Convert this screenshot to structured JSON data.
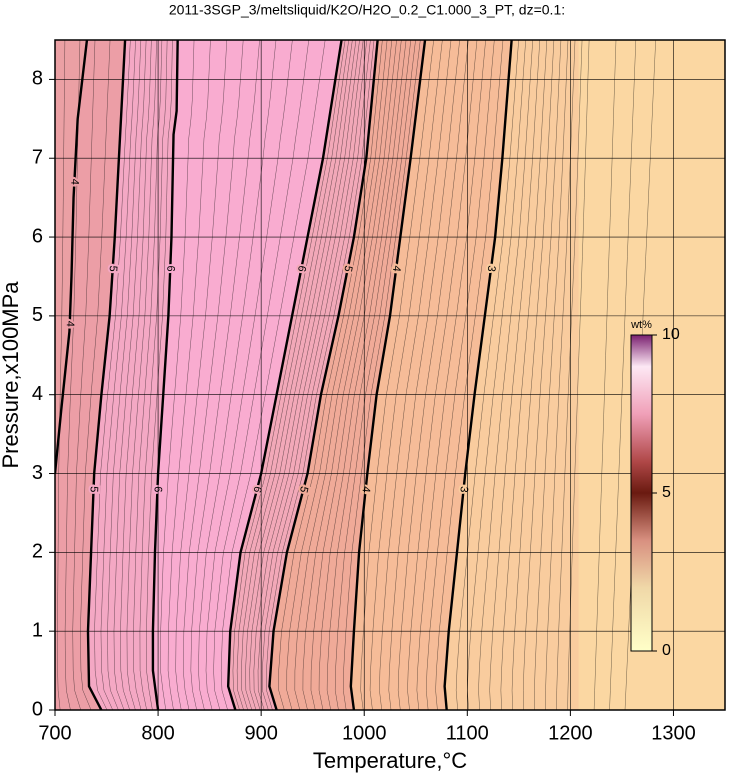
{
  "chart_data": {
    "type": "contour",
    "title": "2011-3SGP_3/meltsliquid/K2O/H2O_0.2_C1.000_3_PT, dz=0.1:",
    "x_label": "Temperature,°C",
    "y_label": "Pressure,x100MPa",
    "xlim": [
      700,
      1350
    ],
    "ylim": [
      0,
      8.5
    ],
    "xticks": [
      700,
      800,
      900,
      1000,
      1100,
      1200,
      1300
    ],
    "yticks": [
      0,
      1,
      2,
      3,
      4,
      5,
      6,
      7,
      8
    ],
    "grid": true,
    "contours": [
      {
        "level": 4,
        "x": [
          700,
          706,
          714,
          716,
          718,
          722,
          731
        ],
        "y": [
          3.0,
          3.8,
          4.8,
          5.5,
          6.5,
          7.5,
          8.5
        ]
      },
      {
        "level": 5,
        "x": [
          745,
          733,
          732,
          735,
          738,
          745,
          753,
          758,
          762,
          768
        ],
        "y": [
          0,
          0.3,
          1,
          2,
          3,
          4,
          5,
          6,
          7,
          8.5
        ]
      },
      {
        "level": 6,
        "x": [
          800,
          795,
          795,
          797,
          800,
          805,
          810,
          813,
          815,
          818,
          819
        ],
        "y": [
          0,
          0.5,
          1,
          2,
          3,
          4,
          5,
          6,
          7.3,
          7.6,
          8.5
        ]
      },
      {
        "level": 6,
        "x": [
          875,
          868,
          870,
          880,
          900,
          915,
          930,
          945,
          960,
          978
        ],
        "y": [
          0,
          0.3,
          1,
          2,
          3,
          4,
          5,
          6,
          7,
          8.5
        ]
      },
      {
        "level": 5,
        "x": [
          915,
          908,
          912,
          925,
          945,
          958,
          975,
          990,
          1002,
          1013
        ],
        "y": [
          0,
          0.3,
          1,
          2,
          3,
          4,
          5,
          6,
          7,
          8.5
        ]
      },
      {
        "level": 4,
        "x": [
          990,
          987,
          990,
          995,
          1003,
          1012,
          1025,
          1035,
          1045,
          1059
        ],
        "y": [
          0,
          0.3,
          1,
          2,
          3,
          4,
          5,
          6,
          7,
          8.5
        ]
      },
      {
        "level": 3,
        "x": [
          1080,
          1078,
          1082,
          1090,
          1098,
          1107,
          1117,
          1127,
          1134,
          1143
        ],
        "y": [
          0,
          0.3,
          1,
          2,
          3,
          4,
          5,
          6,
          7,
          8.5
        ]
      }
    ],
    "colorbar": {
      "label": "wt%",
      "lim": [
        0,
        10
      ],
      "ticks": [
        0,
        5,
        10
      ]
    }
  }
}
